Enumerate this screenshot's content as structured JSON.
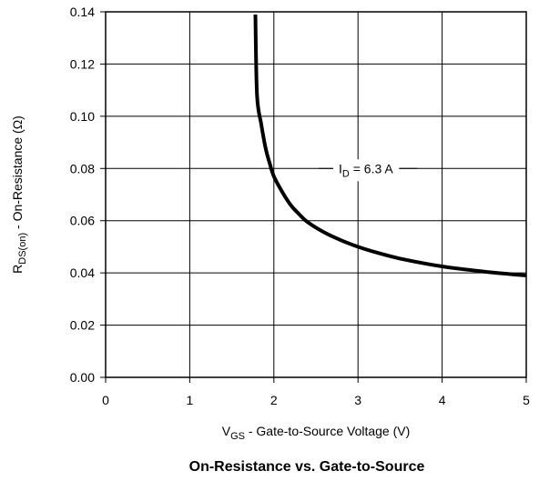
{
  "chart_data": {
    "type": "line",
    "title": "On-Resistance vs. Gate-to-Source",
    "xlabel": {
      "main": "V",
      "sub": "GS",
      "rest": " - Gate-to-Source Voltage (V)"
    },
    "ylabel": {
      "main": "R",
      "sub": "DS(on)",
      "rest": " - On-Resistance (Ω)"
    },
    "xlim": [
      0,
      5
    ],
    "ylim": [
      0,
      0.14
    ],
    "x_ticks": [
      "0",
      "1",
      "2",
      "3",
      "4",
      "5"
    ],
    "y_ticks": [
      "0.00",
      "0.02",
      "0.04",
      "0.06",
      "0.08",
      "0.10",
      "0.12",
      "0.14"
    ],
    "grid": true,
    "annotation": {
      "main": "I",
      "sub": "D",
      "rest": " = 6.3 A"
    },
    "series": [
      {
        "x": [
          1.78,
          1.8,
          1.85,
          1.9,
          1.95,
          2.0,
          2.1,
          2.2,
          2.3,
          2.4,
          2.6,
          2.8,
          3.0,
          3.2,
          3.5,
          4.0,
          4.5,
          5.0
        ],
        "y": [
          0.139,
          0.108,
          0.097,
          0.088,
          0.082,
          0.077,
          0.071,
          0.066,
          0.0625,
          0.0595,
          0.0555,
          0.0525,
          0.05,
          0.048,
          0.0455,
          0.0425,
          0.0405,
          0.039
        ]
      }
    ]
  }
}
